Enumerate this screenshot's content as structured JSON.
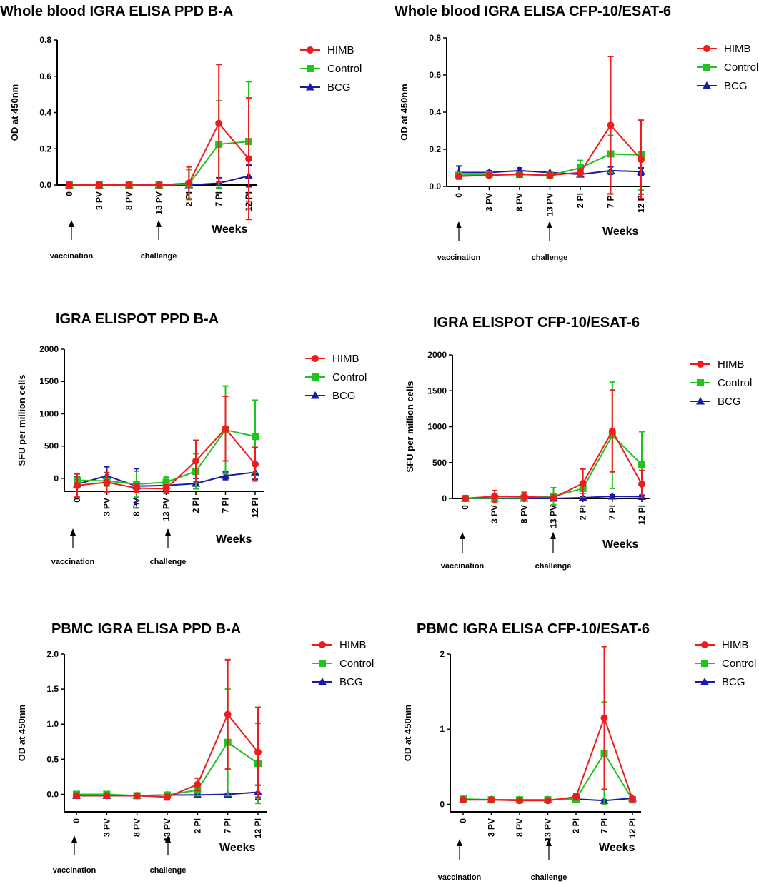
{
  "colors": {
    "HIMB": "#ee1c1c",
    "Control": "#1ec31e",
    "BCG": "#1a1aa8"
  },
  "markers": {
    "HIMB": "circle",
    "Control": "square",
    "BCG": "triangle"
  },
  "chart_data": [
    {
      "type": "line",
      "title": "Whole blood IGRA ELISA PPD B-A",
      "xlabel": "Weeks",
      "ylabel": "OD at 450nm",
      "categories": [
        "0",
        "3 PV",
        "8 PV",
        "13 PV",
        "2 PI",
        "7 PI",
        "12 PI"
      ],
      "ylim": [
        0,
        0.8
      ],
      "yticks": [
        "0.0",
        "0.2",
        "0.4",
        "0.6",
        "0.8"
      ],
      "ytick_values": [
        0,
        0.2,
        0.4,
        0.6,
        0.8
      ],
      "annotations": {
        "vaccination": "vaccination",
        "challenge": "challenge"
      },
      "legend": [
        "HIMB",
        "Control",
        "BCG"
      ],
      "series": [
        {
          "name": "HIMB",
          "values": [
            0.0,
            0.0,
            0.0,
            0.0,
            0.01,
            0.34,
            0.145
          ],
          "err": [
            0.015,
            0.015,
            0.005,
            0.005,
            0.09,
            0.325,
            0.335
          ]
        },
        {
          "name": "Control",
          "values": [
            0.0,
            0.0,
            0.0,
            0.0,
            0.005,
            0.225,
            0.24
          ],
          "err": [
            0.01,
            0.01,
            0.005,
            0.005,
            0.08,
            0.24,
            0.33
          ]
        },
        {
          "name": "BCG",
          "values": [
            0.0,
            0.0,
            0.0,
            0.0,
            0.0,
            0.01,
            0.05
          ],
          "err": [
            0.005,
            0.005,
            0.005,
            0.005,
            0.005,
            0.03,
            0.06
          ]
        }
      ]
    },
    {
      "type": "line",
      "title": "Whole blood IGRA ELISA CFP-10/ESAT-6",
      "xlabel": "Weeks",
      "ylabel": "OD at 450nm",
      "categories": [
        "0",
        "3 PV",
        "8 PV",
        "13 PV",
        "2 PI",
        "7 PI",
        "12 PI"
      ],
      "ylim": [
        0,
        0.8
      ],
      "yticks": [
        "0.0",
        "0.2",
        "0.4",
        "0.6",
        "0.8"
      ],
      "ytick_values": [
        0,
        0.2,
        0.4,
        0.6,
        0.8
      ],
      "annotations": {
        "vaccination": "vaccination",
        "challenge": "challenge"
      },
      "legend": [
        "HIMB",
        "Control",
        "BCG"
      ],
      "series": [
        {
          "name": "HIMB",
          "values": [
            0.055,
            0.06,
            0.065,
            0.06,
            0.075,
            0.33,
            0.145
          ],
          "err": [
            0.01,
            0.01,
            0.01,
            0.01,
            0.02,
            0.37,
            0.21
          ]
        },
        {
          "name": "Control",
          "values": [
            0.06,
            0.065,
            0.065,
            0.06,
            0.1,
            0.175,
            0.17
          ],
          "err": [
            0.01,
            0.01,
            0.01,
            0.01,
            0.04,
            0.1,
            0.19
          ]
        },
        {
          "name": "BCG",
          "values": [
            0.075,
            0.075,
            0.085,
            0.075,
            0.065,
            0.085,
            0.08
          ],
          "err": [
            0.035,
            0.01,
            0.015,
            0.005,
            0.01,
            0.02,
            0.02
          ]
        }
      ]
    },
    {
      "type": "line",
      "title": "IGRA ELISPOT PPD B-A",
      "xlabel": "Weeks",
      "ylabel": "SFU per million cells",
      "categories": [
        "0",
        "3 PV",
        "8 PV",
        "13 PV",
        "2 PI",
        "7 PI",
        "12 PI"
      ],
      "ylim": [
        -200,
        2000
      ],
      "yticks": [
        "0",
        "500",
        "1000",
        "1500",
        "2000"
      ],
      "ytick_values": [
        0,
        500,
        1000,
        1500,
        2000
      ],
      "annotations": {
        "vaccination": "vaccination",
        "challenge": "challenge"
      },
      "legend": [
        "HIMB",
        "Control",
        "BCG"
      ],
      "series": [
        {
          "name": "HIMB",
          "values": [
            -110,
            -60,
            -150,
            -160,
            270,
            770,
            220
          ],
          "err": [
            180,
            150,
            60,
            60,
            320,
            500,
            260
          ]
        },
        {
          "name": "Control",
          "values": [
            -30,
            -40,
            -90,
            -60,
            110,
            750,
            650
          ],
          "err": [
            100,
            80,
            200,
            80,
            270,
            680,
            560
          ]
        },
        {
          "name": "BCG",
          "values": [
            -90,
            40,
            -120,
            -110,
            -80,
            40,
            95
          ],
          "err": [
            110,
            140,
            270,
            120,
            80,
            60,
            110
          ]
        }
      ]
    },
    {
      "type": "line",
      "title": "IGRA ELISPOT CFP-10/ESAT-6",
      "xlabel": "Weeks",
      "ylabel": "SFU per million cells",
      "categories": [
        "0",
        "3 PV",
        "8 PV",
        "13 PV",
        "2 PI",
        "7 PI",
        "12 PI"
      ],
      "ylim": [
        0,
        2000
      ],
      "yticks": [
        "0",
        "500",
        "1000",
        "1500",
        "2000"
      ],
      "ytick_values": [
        0,
        500,
        1000,
        1500,
        2000
      ],
      "annotations": {
        "vaccination": "vaccination",
        "challenge": "challenge"
      },
      "legend": [
        "HIMB",
        "Control",
        "BCG"
      ],
      "series": [
        {
          "name": "HIMB",
          "values": [
            0,
            30,
            25,
            10,
            210,
            940,
            200
          ],
          "err": [
            10,
            80,
            60,
            20,
            200,
            570,
            190
          ]
        },
        {
          "name": "Control",
          "values": [
            0,
            5,
            5,
            30,
            140,
            880,
            470
          ],
          "err": [
            10,
            10,
            10,
            120,
            70,
            740,
            460
          ]
        },
        {
          "name": "BCG",
          "values": [
            0,
            0,
            0,
            0,
            10,
            30,
            25
          ],
          "err": [
            5,
            5,
            5,
            5,
            10,
            20,
            20
          ]
        }
      ]
    },
    {
      "type": "line",
      "title": "PBMC IGRA ELISA PPD B-A",
      "xlabel": "Weeks",
      "ylabel": "OD at 450nm",
      "categories": [
        "0",
        "3 PV",
        "8 PV",
        "13 PV",
        "2 PI",
        "7 PI",
        "12 PI"
      ],
      "ylim": [
        -0.25,
        2.0
      ],
      "yticks": [
        "0.0",
        "0.5",
        "1.0",
        "1.5",
        "2.0"
      ],
      "ytick_values": [
        0,
        0.5,
        1.0,
        1.5,
        2.0
      ],
      "annotations": {
        "vaccination": "vaccination",
        "challenge": "challenge"
      },
      "legend": [
        "HIMB",
        "Control",
        "BCG"
      ],
      "series": [
        {
          "name": "HIMB",
          "values": [
            -0.02,
            -0.02,
            -0.02,
            -0.04,
            0.14,
            1.14,
            0.6
          ],
          "err": [
            0.02,
            0.02,
            0.02,
            0.04,
            0.09,
            0.78,
            0.64
          ]
        },
        {
          "name": "Control",
          "values": [
            0.0,
            0.0,
            -0.02,
            -0.01,
            0.06,
            0.74,
            0.44
          ],
          "err": [
            0.02,
            0.02,
            0.02,
            0.02,
            0.08,
            0.76,
            0.57
          ]
        },
        {
          "name": "BCG",
          "values": [
            -0.02,
            -0.02,
            -0.02,
            -0.01,
            -0.01,
            0.0,
            0.03
          ],
          "err": [
            0.01,
            0.01,
            0.01,
            0.01,
            0.01,
            0.01,
            0.1
          ]
        }
      ]
    },
    {
      "type": "line",
      "title": "PBMC IGRA  ELISA CFP-10/ESAT-6",
      "xlabel": "Weeks",
      "ylabel": "OD at 450nm",
      "categories": [
        "0",
        "3 PV",
        "8 PV",
        "13 PV",
        "2 PI",
        "7 PI",
        "12 PI"
      ],
      "ylim": [
        -0.1,
        2.0
      ],
      "yticks": [
        "0",
        "1",
        "2"
      ],
      "ytick_values": [
        0,
        1,
        2
      ],
      "annotations": {
        "vaccination": "vaccination",
        "challenge": "challenge"
      },
      "legend": [
        "HIMB",
        "Control",
        "BCG"
      ],
      "series": [
        {
          "name": "HIMB",
          "values": [
            0.06,
            0.06,
            0.05,
            0.05,
            0.1,
            1.15,
            0.07
          ],
          "err": [
            0.01,
            0.01,
            0.01,
            0.01,
            0.04,
            0.95,
            0.03
          ]
        },
        {
          "name": "Control",
          "values": [
            0.07,
            0.06,
            0.06,
            0.06,
            0.07,
            0.68,
            0.06
          ],
          "err": [
            0.01,
            0.01,
            0.01,
            0.01,
            0.02,
            0.68,
            0.02
          ]
        },
        {
          "name": "BCG",
          "values": [
            0.06,
            0.06,
            0.06,
            0.06,
            0.07,
            0.05,
            0.08
          ],
          "err": [
            0.01,
            0.01,
            0.01,
            0.01,
            0.01,
            0.01,
            0.01
          ]
        }
      ]
    }
  ]
}
